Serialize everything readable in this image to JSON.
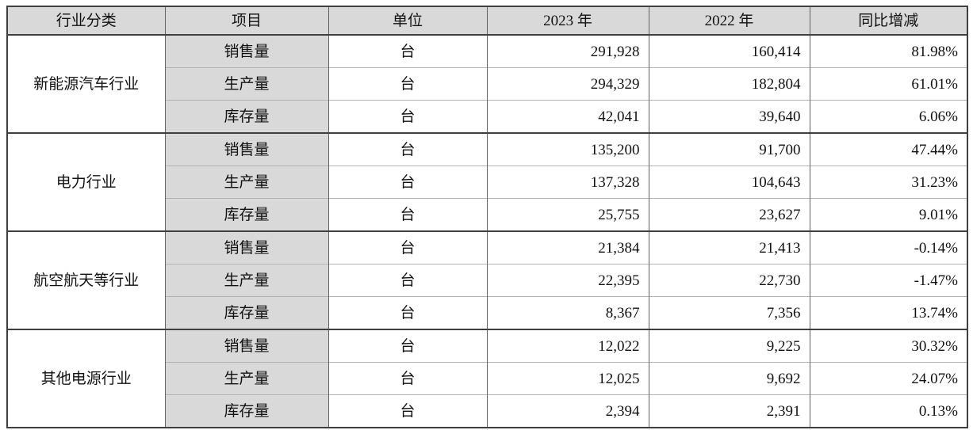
{
  "table": {
    "header": {
      "columns": [
        "行业分类",
        "项目",
        "单位",
        "2023 年",
        "2022 年",
        "同比增减"
      ]
    },
    "groups": [
      {
        "industry": "新能源汽车行业",
        "rows": [
          {
            "item": "销售量",
            "unit": "台",
            "y2023": "291,928",
            "y2022": "160,414",
            "yoy": "81.98%"
          },
          {
            "item": "生产量",
            "unit": "台",
            "y2023": "294,329",
            "y2022": "182,804",
            "yoy": "61.01%"
          },
          {
            "item": "库存量",
            "unit": "台",
            "y2023": "42,041",
            "y2022": "39,640",
            "yoy": "6.06%"
          }
        ]
      },
      {
        "industry": "电力行业",
        "rows": [
          {
            "item": "销售量",
            "unit": "台",
            "y2023": "135,200",
            "y2022": "91,700",
            "yoy": "47.44%"
          },
          {
            "item": "生产量",
            "unit": "台",
            "y2023": "137,328",
            "y2022": "104,643",
            "yoy": "31.23%"
          },
          {
            "item": "库存量",
            "unit": "台",
            "y2023": "25,755",
            "y2022": "23,627",
            "yoy": "9.01%"
          }
        ]
      },
      {
        "industry": "航空航天等行业",
        "rows": [
          {
            "item": "销售量",
            "unit": "台",
            "y2023": "21,384",
            "y2022": "21,413",
            "yoy": "-0.14%"
          },
          {
            "item": "生产量",
            "unit": "台",
            "y2023": "22,395",
            "y2022": "22,730",
            "yoy": "-1.47%"
          },
          {
            "item": "库存量",
            "unit": "台",
            "y2023": "8,367",
            "y2022": "7,356",
            "yoy": "13.74%"
          }
        ]
      },
      {
        "industry": "其他电源行业",
        "rows": [
          {
            "item": "销售量",
            "unit": "台",
            "y2023": "12,022",
            "y2022": "9,225",
            "yoy": "30.32%"
          },
          {
            "item": "生产量",
            "unit": "台",
            "y2023": "12,025",
            "y2022": "9,692",
            "yoy": "24.07%"
          },
          {
            "item": "库存量",
            "unit": "台",
            "y2023": "2,394",
            "y2022": "2,391",
            "yoy": "0.13%"
          }
        ]
      }
    ],
    "colors": {
      "header_fill": "#d9d9d9",
      "item_fill": "#d9d9d9",
      "outer_border": "#3f3f3f",
      "inner_border": "#b3b3b3",
      "column_border": "#636363",
      "text": "#111111"
    }
  }
}
